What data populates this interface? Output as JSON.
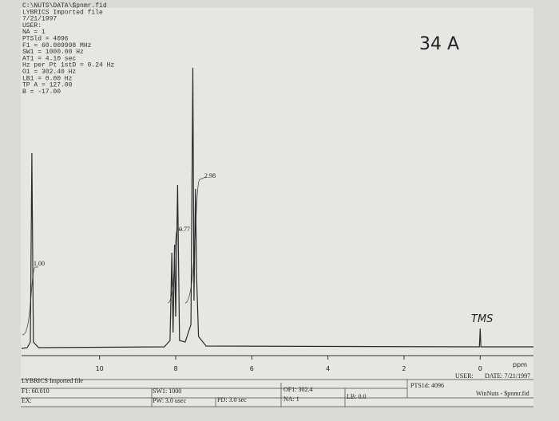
{
  "chart_data": {
    "type": "line",
    "header": [
      "C:\\NUTS\\DATA\\$pnmr.fid",
      "LYBRICS Imported file",
      "7/21/1997",
      "USER:",
      "NA = 1",
      "PTSld = 4096",
      "F1 = 60.009998 MHz",
      "SW1 = 1000.00 Hz",
      "AT1 = 4.10 sec",
      "Hz per Pt 1stD = 0.24 Hz",
      "O1 = 302.40 Hz",
      "LB1 = 0.00 Hz",
      "TP A = 127.00",
      "B = -17.00"
    ],
    "handwritten": [
      "34 A",
      "TMS"
    ],
    "integrals": [
      "1.00",
      "0.77",
      "2.98"
    ],
    "x_label": "ppm",
    "xlim": [
      12.05,
      -1.4
    ],
    "xticks": [
      10,
      8,
      6,
      4,
      2,
      0
    ],
    "ylim": [
      0,
      400
    ],
    "color": "#2a2a2a",
    "x": [
      12.05,
      11.9,
      11.82,
      11.78,
      11.74,
      11.6,
      8.3,
      8.15,
      8.1,
      8.07,
      8.03,
      8.0,
      7.95,
      7.9,
      7.75,
      7.6,
      7.55,
      7.52,
      7.48,
      7.45,
      7.4,
      7.2,
      0.02,
      0,
      -0.02,
      -1.4
    ],
    "values": [
      0,
      1,
      8,
      245,
      8,
      1,
      2,
      10,
      120,
      20,
      130,
      40,
      205,
      10,
      8,
      30,
      352,
      60,
      200,
      90,
      15,
      3,
      2,
      25,
      2,
      2
    ],
    "footer": [
      "LYBRICS Imported file",
      "F1: 60.010",
      "EX:",
      "SW1: 1000",
      "PW: 3.0 usec",
      "PD: 3.0 sec",
      "OF1: 302.4",
      "NA: 1",
      "LB: 0.0",
      "PTS1d: 4096",
      "USER:",
      "DATE: 7/21/1997",
      "WinNuts - $pnmr.fid"
    ]
  }
}
